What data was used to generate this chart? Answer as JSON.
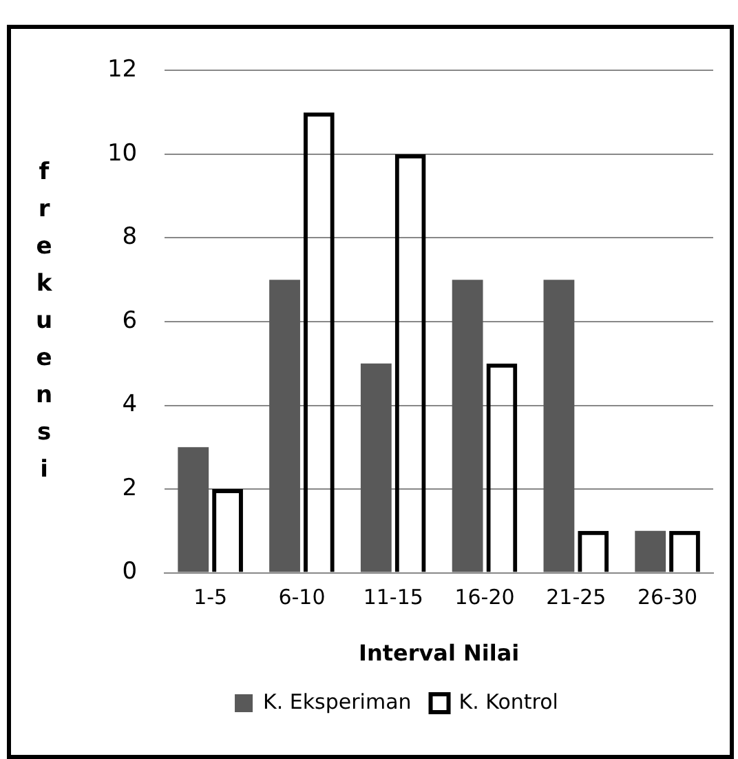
{
  "chart_data": {
    "type": "bar",
    "xlabel": "Interval Nilai",
    "ylabel": "frekuensi",
    "categories": [
      "1-5",
      "6-10",
      "11-15",
      "16-20",
      "21-25",
      "26-30"
    ],
    "series": [
      {
        "name": "K. Eksperiman",
        "color": "#595959",
        "values": [
          3,
          7,
          5,
          7,
          7,
          1
        ]
      },
      {
        "name": "K. Kontrol",
        "color": "#000000",
        "values": [
          2,
          11,
          10,
          5,
          1,
          1
        ]
      }
    ],
    "ylim": [
      0,
      12
    ],
    "yticks": [
      0,
      2,
      4,
      6,
      8,
      10,
      12
    ],
    "grid": "y",
    "legend": "bottom"
  }
}
